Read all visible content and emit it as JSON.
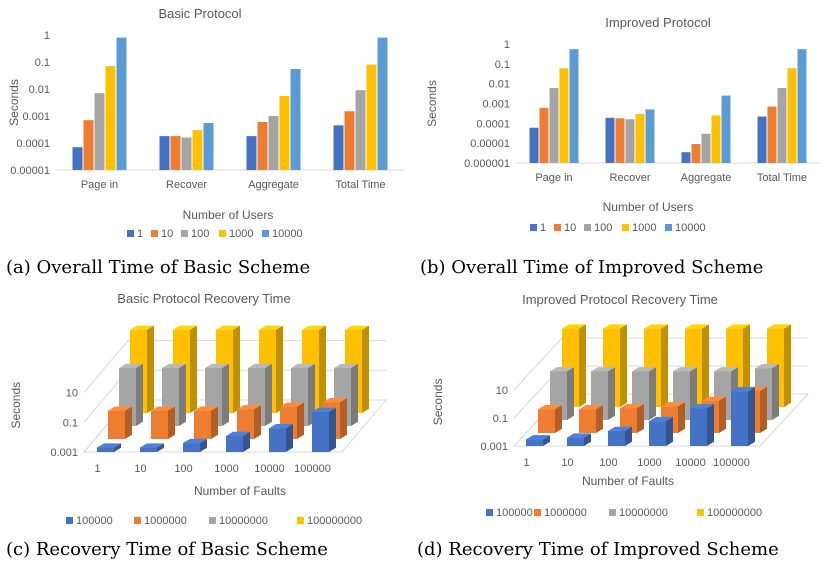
{
  "colors": {
    "s1": "#4472C4",
    "s2": "#ED7D31",
    "s3": "#A5A5A5",
    "s4": "#FFC000",
    "s5": "#5B9BD5"
  },
  "captions": {
    "a": "(a) Overall Time of Basic Scheme",
    "b": "(b) Overall Time of Improved Scheme",
    "c": "(c) Recovery Time of Basic Scheme",
    "d": "(d) Recovery Time of Improved Scheme"
  },
  "chart_data": [
    {
      "type": "bar",
      "scale": "log",
      "title": "Basic Protocol",
      "xlabel": "Number of Users",
      "ylabel": "Seconds",
      "yticks": [
        "0.00001",
        "0.0001",
        "0.001",
        "0.01",
        "0.1",
        "1"
      ],
      "ylim": [
        1e-05,
        1
      ],
      "legend": "bottom",
      "categories": [
        "Page in",
        "Recover",
        "Aggregate",
        "Total Time"
      ],
      "series": [
        {
          "name": "1",
          "values": [
            7e-05,
            0.00018,
            0.00018,
            0.00045
          ]
        },
        {
          "name": "10",
          "values": [
            0.0007,
            0.00018,
            0.0006,
            0.0015
          ]
        },
        {
          "name": "100",
          "values": [
            0.007,
            0.00016,
            0.001,
            0.009
          ]
        },
        {
          "name": "1000",
          "values": [
            0.07,
            0.0003,
            0.0055,
            0.08
          ]
        },
        {
          "name": "10000",
          "values": [
            0.8,
            0.00055,
            0.055,
            0.8
          ]
        }
      ]
    },
    {
      "type": "bar",
      "scale": "log",
      "title": "Improved Protocol",
      "xlabel": "Number of Users",
      "ylabel": "Seconds",
      "yticks": [
        "0.000001",
        "0.00001",
        "0.0001",
        "0.001",
        "0.01",
        "0.1",
        "1"
      ],
      "ylim": [
        1e-06,
        1
      ],
      "legend": "bottom",
      "categories": [
        "Page in",
        "Recover",
        "Aggregate",
        "Total Time"
      ],
      "series": [
        {
          "name": "1",
          "values": [
            6e-05,
            0.00019,
            3.5e-06,
            0.00022
          ]
        },
        {
          "name": "10",
          "values": [
            0.0006,
            0.00018,
            9e-06,
            0.0007
          ]
        },
        {
          "name": "100",
          "values": [
            0.006,
            0.00016,
            3e-05,
            0.006
          ]
        },
        {
          "name": "1000",
          "values": [
            0.06,
            0.0003,
            0.00025,
            0.06
          ]
        },
        {
          "name": "10000",
          "values": [
            0.55,
            0.0005,
            0.0025,
            0.55
          ]
        }
      ]
    },
    {
      "type": "bar",
      "view": "3d",
      "scale": "log",
      "title": "Basic Protocol Recovery Time",
      "xlabel": "Number of Faults",
      "ylabel": "Seconds",
      "yticks": [
        "0.001",
        "0.1",
        "10"
      ],
      "ylim": [
        0.001,
        10000
      ],
      "legend": "bottom",
      "categories": [
        "1",
        "10",
        "100",
        "1000",
        "10000",
        "100000"
      ],
      "series": [
        {
          "name": "100000",
          "values": [
            0.002,
            0.002,
            0.004,
            0.012,
            0.04,
            0.5
          ]
        },
        {
          "name": "1000000",
          "values": [
            0.08,
            0.08,
            0.08,
            0.1,
            0.15,
            0.3
          ]
        },
        {
          "name": "10000000",
          "values": [
            8,
            8,
            8,
            8,
            8,
            8
          ]
        },
        {
          "name": "100000000",
          "values": [
            400,
            400,
            400,
            400,
            400,
            400
          ]
        }
      ]
    },
    {
      "type": "bar",
      "view": "3d",
      "scale": "log",
      "title": "Improved Protocol Recovery Time",
      "xlabel": "Number of Faults",
      "ylabel": "Seconds",
      "yticks": [
        "0.001",
        "0.1",
        "10"
      ],
      "ylim": [
        0.001,
        10000
      ],
      "legend": "bottom",
      "categories": [
        "1",
        "10",
        "100",
        "1000",
        "10000",
        "100000"
      ],
      "series": [
        {
          "name": "100000",
          "values": [
            0.003,
            0.004,
            0.012,
            0.06,
            0.5,
            8
          ]
        },
        {
          "name": "1000000",
          "values": [
            0.05,
            0.05,
            0.06,
            0.08,
            0.2,
            1
          ]
        },
        {
          "name": "10000000",
          "values": [
            3,
            3,
            3,
            3,
            3,
            5
          ]
        },
        {
          "name": "100000000",
          "values": [
            400,
            400,
            400,
            400,
            400,
            400
          ]
        }
      ]
    }
  ]
}
